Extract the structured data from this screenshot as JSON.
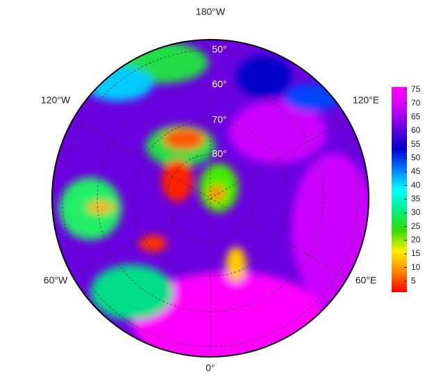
{
  "map": {
    "lon_labels": [
      "180°W",
      "120°W",
      "120°E",
      "60°W",
      "60°E",
      "0°"
    ],
    "lat_labels": [
      "50°",
      "60°",
      "70°",
      "80°"
    ]
  },
  "colorbar": {
    "range": [
      1,
      76
    ],
    "ticks": [
      5,
      10,
      15,
      20,
      25,
      30,
      35,
      40,
      45,
      50,
      55,
      60,
      65,
      70,
      75
    ],
    "colors": [
      "#ff0000",
      "#ff8800",
      "#ffee00",
      "#33dd00",
      "#00ee88",
      "#00ffff",
      "#0077ff",
      "#0000cc",
      "#6600dd",
      "#cc00ff",
      "#ff00ff"
    ]
  }
}
